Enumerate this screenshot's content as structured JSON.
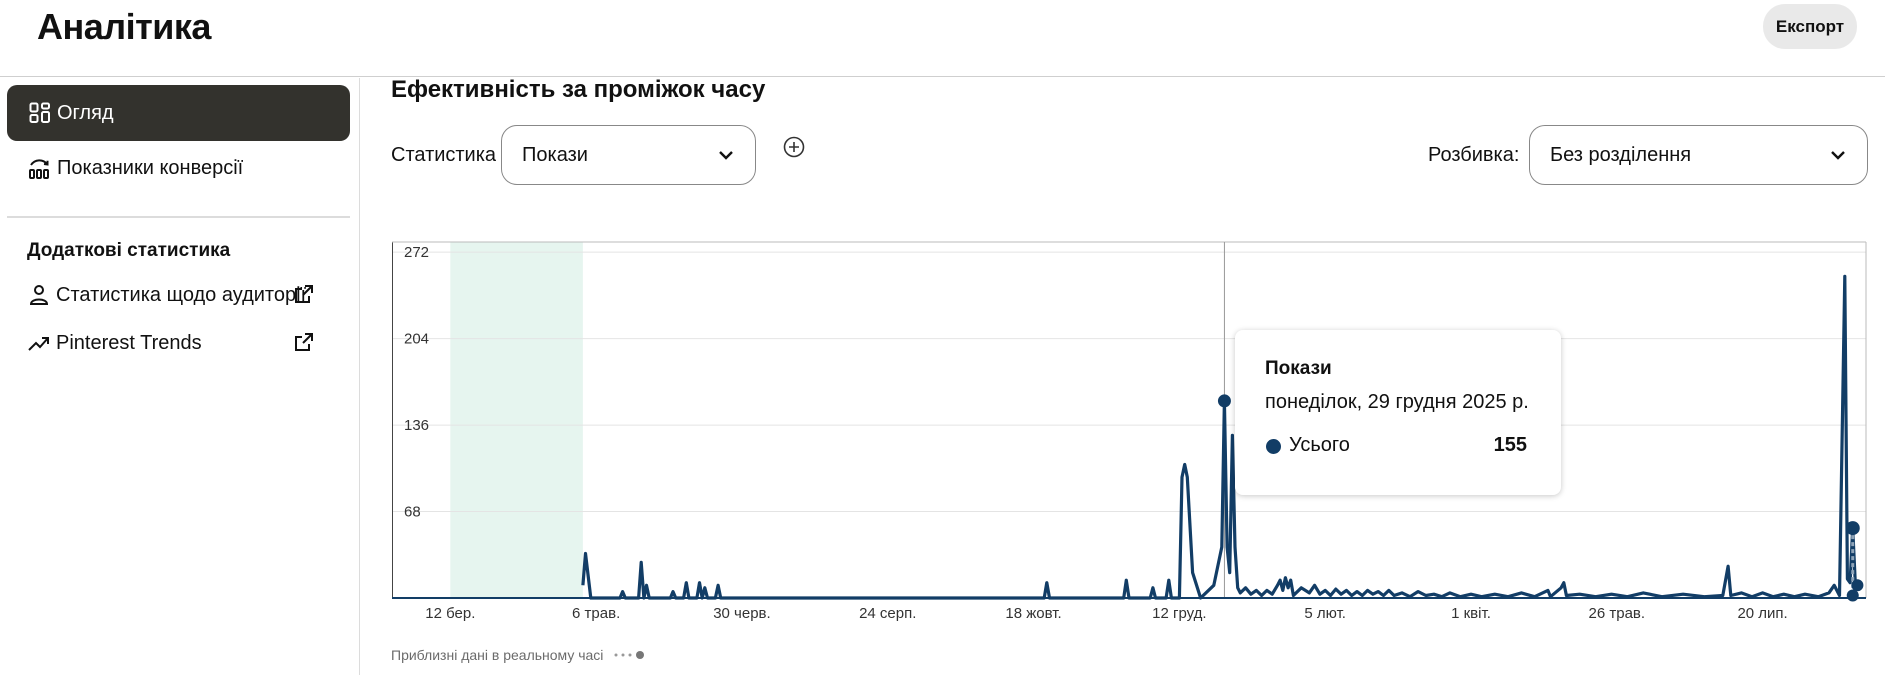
{
  "app": {
    "title": "Аналітика",
    "export_label": "Експорт"
  },
  "sidebar": {
    "items": [
      {
        "label": "Огляд",
        "icon": "grid-icon",
        "active": true
      },
      {
        "label": "Показники конверсії",
        "icon": "funnel-chart-icon",
        "active": false
      }
    ],
    "extra_heading": "Додаткові статистика",
    "links": [
      {
        "label": "Статистика щодо аудиторії",
        "icon": "person-icon",
        "external": true
      },
      {
        "label": "Pinterest Trends",
        "icon": "trend-up-icon",
        "external": true
      }
    ]
  },
  "main": {
    "section_title": "Ефективність за проміжок часу",
    "metric_label": "Статистика",
    "metric_value": "Покази",
    "breakdown_label": "Розбивка:",
    "breakdown_value": "Без розділення",
    "footnote": "Приблизні дані в реальному часі"
  },
  "tooltip": {
    "title": "Покази",
    "date": "понеділок, 29 грудня 2025 р.",
    "series": "Усього",
    "value": "155"
  },
  "colors": {
    "series": "#123d66",
    "highlight": "#e6f5ef",
    "active_nav": "#33322d"
  },
  "chart_data": {
    "type": "line",
    "ylim": [
      0,
      280
    ],
    "yticks": [
      68,
      136,
      204,
      272
    ],
    "xticks": [
      "12 бер.",
      "6 трав.",
      "30 черв.",
      "24 серп.",
      "18 жовт.",
      "12 груд.",
      "5 лют.",
      "1 квіт.",
      "26 трав.",
      "20 лип."
    ],
    "highlight_range": [
      "2025-03-12",
      "2025-05-01"
    ],
    "hover_date": "2025-12-29",
    "series": [
      {
        "name": "Усього",
        "points": [
          [
            "2025-05-01",
            10
          ],
          [
            "2025-05-02",
            35
          ],
          [
            "2025-05-04",
            0
          ],
          [
            "2025-05-15",
            0
          ],
          [
            "2025-05-16",
            5
          ],
          [
            "2025-05-17",
            0
          ],
          [
            "2025-05-22",
            0
          ],
          [
            "2025-05-23",
            28
          ],
          [
            "2025-05-24",
            0
          ],
          [
            "2025-05-25",
            10
          ],
          [
            "2025-05-26",
            0
          ],
          [
            "2025-06-03",
            0
          ],
          [
            "2025-06-04",
            5
          ],
          [
            "2025-06-05",
            0
          ],
          [
            "2025-06-08",
            0
          ],
          [
            "2025-06-09",
            12
          ],
          [
            "2025-06-10",
            0
          ],
          [
            "2025-06-13",
            0
          ],
          [
            "2025-06-14",
            12
          ],
          [
            "2025-06-15",
            0
          ],
          [
            "2025-06-16",
            8
          ],
          [
            "2025-06-17",
            0
          ],
          [
            "2025-06-20",
            0
          ],
          [
            "2025-06-21",
            10
          ],
          [
            "2025-06-22",
            0
          ],
          [
            "2025-10-22",
            0
          ],
          [
            "2025-10-23",
            12
          ],
          [
            "2025-10-24",
            0
          ],
          [
            "2025-11-21",
            0
          ],
          [
            "2025-11-22",
            14
          ],
          [
            "2025-11-23",
            0
          ],
          [
            "2025-12-01",
            0
          ],
          [
            "2025-12-02",
            8
          ],
          [
            "2025-12-03",
            0
          ],
          [
            "2025-12-07",
            0
          ],
          [
            "2025-12-08",
            14
          ],
          [
            "2025-12-09",
            0
          ],
          [
            "2025-12-12",
            0
          ],
          [
            "2025-12-13",
            95
          ],
          [
            "2025-12-14",
            105
          ],
          [
            "2025-12-15",
            95
          ],
          [
            "2025-12-17",
            20
          ],
          [
            "2025-12-20",
            0
          ],
          [
            "2025-12-25",
            10
          ],
          [
            "2025-12-28",
            40
          ],
          [
            "2025-12-29",
            155
          ],
          [
            "2025-12-30",
            40
          ],
          [
            "2025-12-31",
            20
          ],
          [
            "2026-01-01",
            128
          ],
          [
            "2026-01-02",
            40
          ],
          [
            "2026-01-03",
            8
          ],
          [
            "2026-01-04",
            4
          ],
          [
            "2026-01-06",
            8
          ],
          [
            "2026-01-08",
            3
          ],
          [
            "2026-01-10",
            6
          ],
          [
            "2026-01-12",
            2
          ],
          [
            "2026-01-14",
            6
          ],
          [
            "2026-01-16",
            3
          ],
          [
            "2026-01-18",
            10
          ],
          [
            "2026-01-19",
            14
          ],
          [
            "2026-01-20",
            6
          ],
          [
            "2026-01-21",
            16
          ],
          [
            "2026-01-22",
            8
          ],
          [
            "2026-01-23",
            14
          ],
          [
            "2026-01-24",
            2
          ],
          [
            "2026-01-27",
            8
          ],
          [
            "2026-01-30",
            4
          ],
          [
            "2026-02-01",
            10
          ],
          [
            "2026-02-03",
            3
          ],
          [
            "2026-02-05",
            6
          ],
          [
            "2026-02-07",
            2
          ],
          [
            "2026-02-09",
            7
          ],
          [
            "2026-02-11",
            3
          ],
          [
            "2026-02-13",
            6
          ],
          [
            "2026-02-15",
            2
          ],
          [
            "2026-02-17",
            5
          ],
          [
            "2026-02-19",
            2
          ],
          [
            "2026-02-21",
            6
          ],
          [
            "2026-02-23",
            3
          ],
          [
            "2026-02-25",
            5
          ],
          [
            "2026-02-27",
            2
          ],
          [
            "2026-03-01",
            6
          ],
          [
            "2026-03-03",
            2
          ],
          [
            "2026-03-06",
            4
          ],
          [
            "2026-03-09",
            1
          ],
          [
            "2026-03-12",
            5
          ],
          [
            "2026-03-15",
            2
          ],
          [
            "2026-03-18",
            3
          ],
          [
            "2026-03-21",
            1
          ],
          [
            "2026-03-24",
            4
          ],
          [
            "2026-03-28",
            1
          ],
          [
            "2026-04-01",
            3
          ],
          [
            "2026-04-05",
            1
          ],
          [
            "2026-04-10",
            3
          ],
          [
            "2026-04-15",
            1
          ],
          [
            "2026-04-20",
            4
          ],
          [
            "2026-04-25",
            1
          ],
          [
            "2026-04-30",
            6
          ],
          [
            "2026-05-01",
            1
          ],
          [
            "2026-05-05",
            8
          ],
          [
            "2026-05-06",
            12
          ],
          [
            "2026-05-07",
            2
          ],
          [
            "2026-05-12",
            3
          ],
          [
            "2026-05-18",
            1
          ],
          [
            "2026-05-24",
            3
          ],
          [
            "2026-05-30",
            1
          ],
          [
            "2026-06-05",
            4
          ],
          [
            "2026-06-12",
            1
          ],
          [
            "2026-06-20",
            3
          ],
          [
            "2026-06-28",
            1
          ],
          [
            "2026-07-05",
            2
          ],
          [
            "2026-07-07",
            25
          ],
          [
            "2026-07-08",
            2
          ],
          [
            "2026-07-12",
            4
          ],
          [
            "2026-07-16",
            1
          ],
          [
            "2026-07-20",
            4
          ],
          [
            "2026-07-24",
            1
          ],
          [
            "2026-07-28",
            3
          ],
          [
            "2026-08-01",
            1
          ],
          [
            "2026-08-05",
            3
          ],
          [
            "2026-08-10",
            1
          ],
          [
            "2026-08-14",
            4
          ],
          [
            "2026-08-16",
            10
          ],
          [
            "2026-08-18",
            2
          ],
          [
            "2026-08-20",
            253
          ],
          [
            "2026-08-21",
            15
          ],
          [
            "2026-08-22",
            12
          ],
          [
            "2026-08-23",
            55
          ],
          [
            "2026-08-24",
            10
          ]
        ]
      }
    ]
  }
}
